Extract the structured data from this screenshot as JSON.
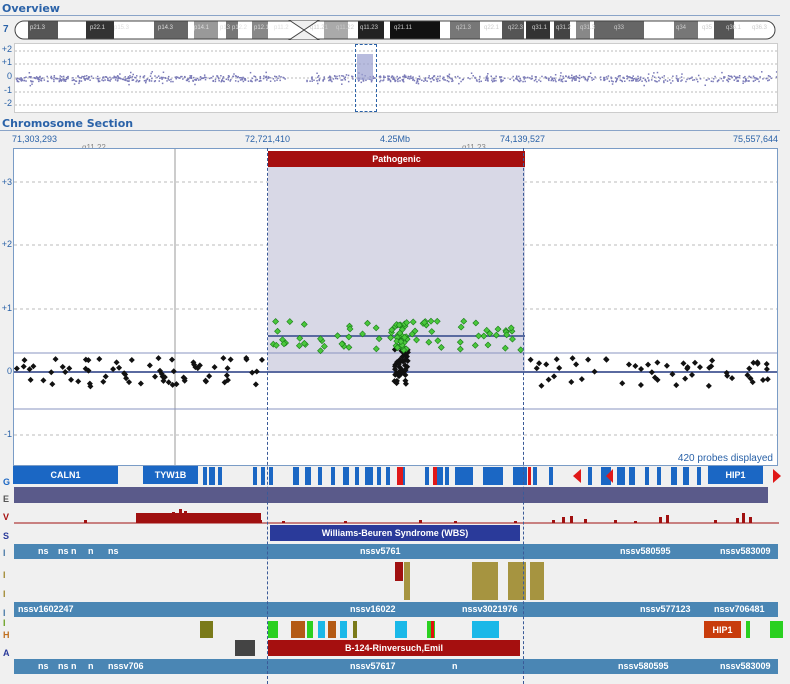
{
  "overview": {
    "title": "Overview",
    "chromosome_number": "7",
    "bands_left": [
      "p21.3",
      "p22.1",
      "p15.3",
      "p14.3",
      "p14.1",
      "p13",
      "p12.2",
      "p12.1",
      "p11.2"
    ],
    "bands_right": [
      "q11.21",
      "q11.22",
      "q11.23",
      "q21.11",
      "q21.3",
      "q22.1",
      "q22.3",
      "q31.1",
      "q31.2",
      "q31.3",
      "q33",
      "q34",
      "q35",
      "q36.1",
      "q36.3"
    ],
    "y_ticks": [
      "+2",
      "+1",
      "0",
      "-1",
      "-2"
    ]
  },
  "section": {
    "title": "Chromosome Section",
    "pos_left": "71,303,293",
    "pos_sel_start": "72,721,410",
    "size_label": "4.25Mb",
    "pos_sel_end": "74,139,527",
    "pos_right": "75,557,644",
    "band_left": "q11.22",
    "band_right": "q11.23",
    "y_ticks": [
      "+3",
      "+2",
      "+1",
      "0",
      "-1"
    ],
    "pathogenic_label": "Pathogenic",
    "probes_label": "420 probes displayed"
  },
  "tracks": {
    "side_letters": [
      "G",
      "E",
      "V",
      "S",
      "I",
      "I",
      "I",
      "I",
      "I",
      "H",
      "A"
    ],
    "genes": {
      "caln1": "CALN1",
      "tyw1b": "TYW1B",
      "hip1": "HIP1"
    },
    "syndrome": "Williams-Beuren Syndrome (WBS)",
    "nssv_row1": [
      "ns",
      "ns n",
      "n",
      "ns",
      "nssv5761",
      "nssv580595",
      "nssv583009"
    ],
    "nssv_row2": [
      "nssv1602247",
      "nssv16022",
      "nssv3021976",
      "nssv577123",
      "nssv706481"
    ],
    "hip1_box": "HIP1",
    "sample": "B-124-Rinversuch,Emil",
    "nssv_row3": [
      "ns",
      "ns n",
      "n",
      "nssv706",
      "nssv57617",
      "n",
      "nssv580595",
      "nssv583009"
    ]
  }
}
